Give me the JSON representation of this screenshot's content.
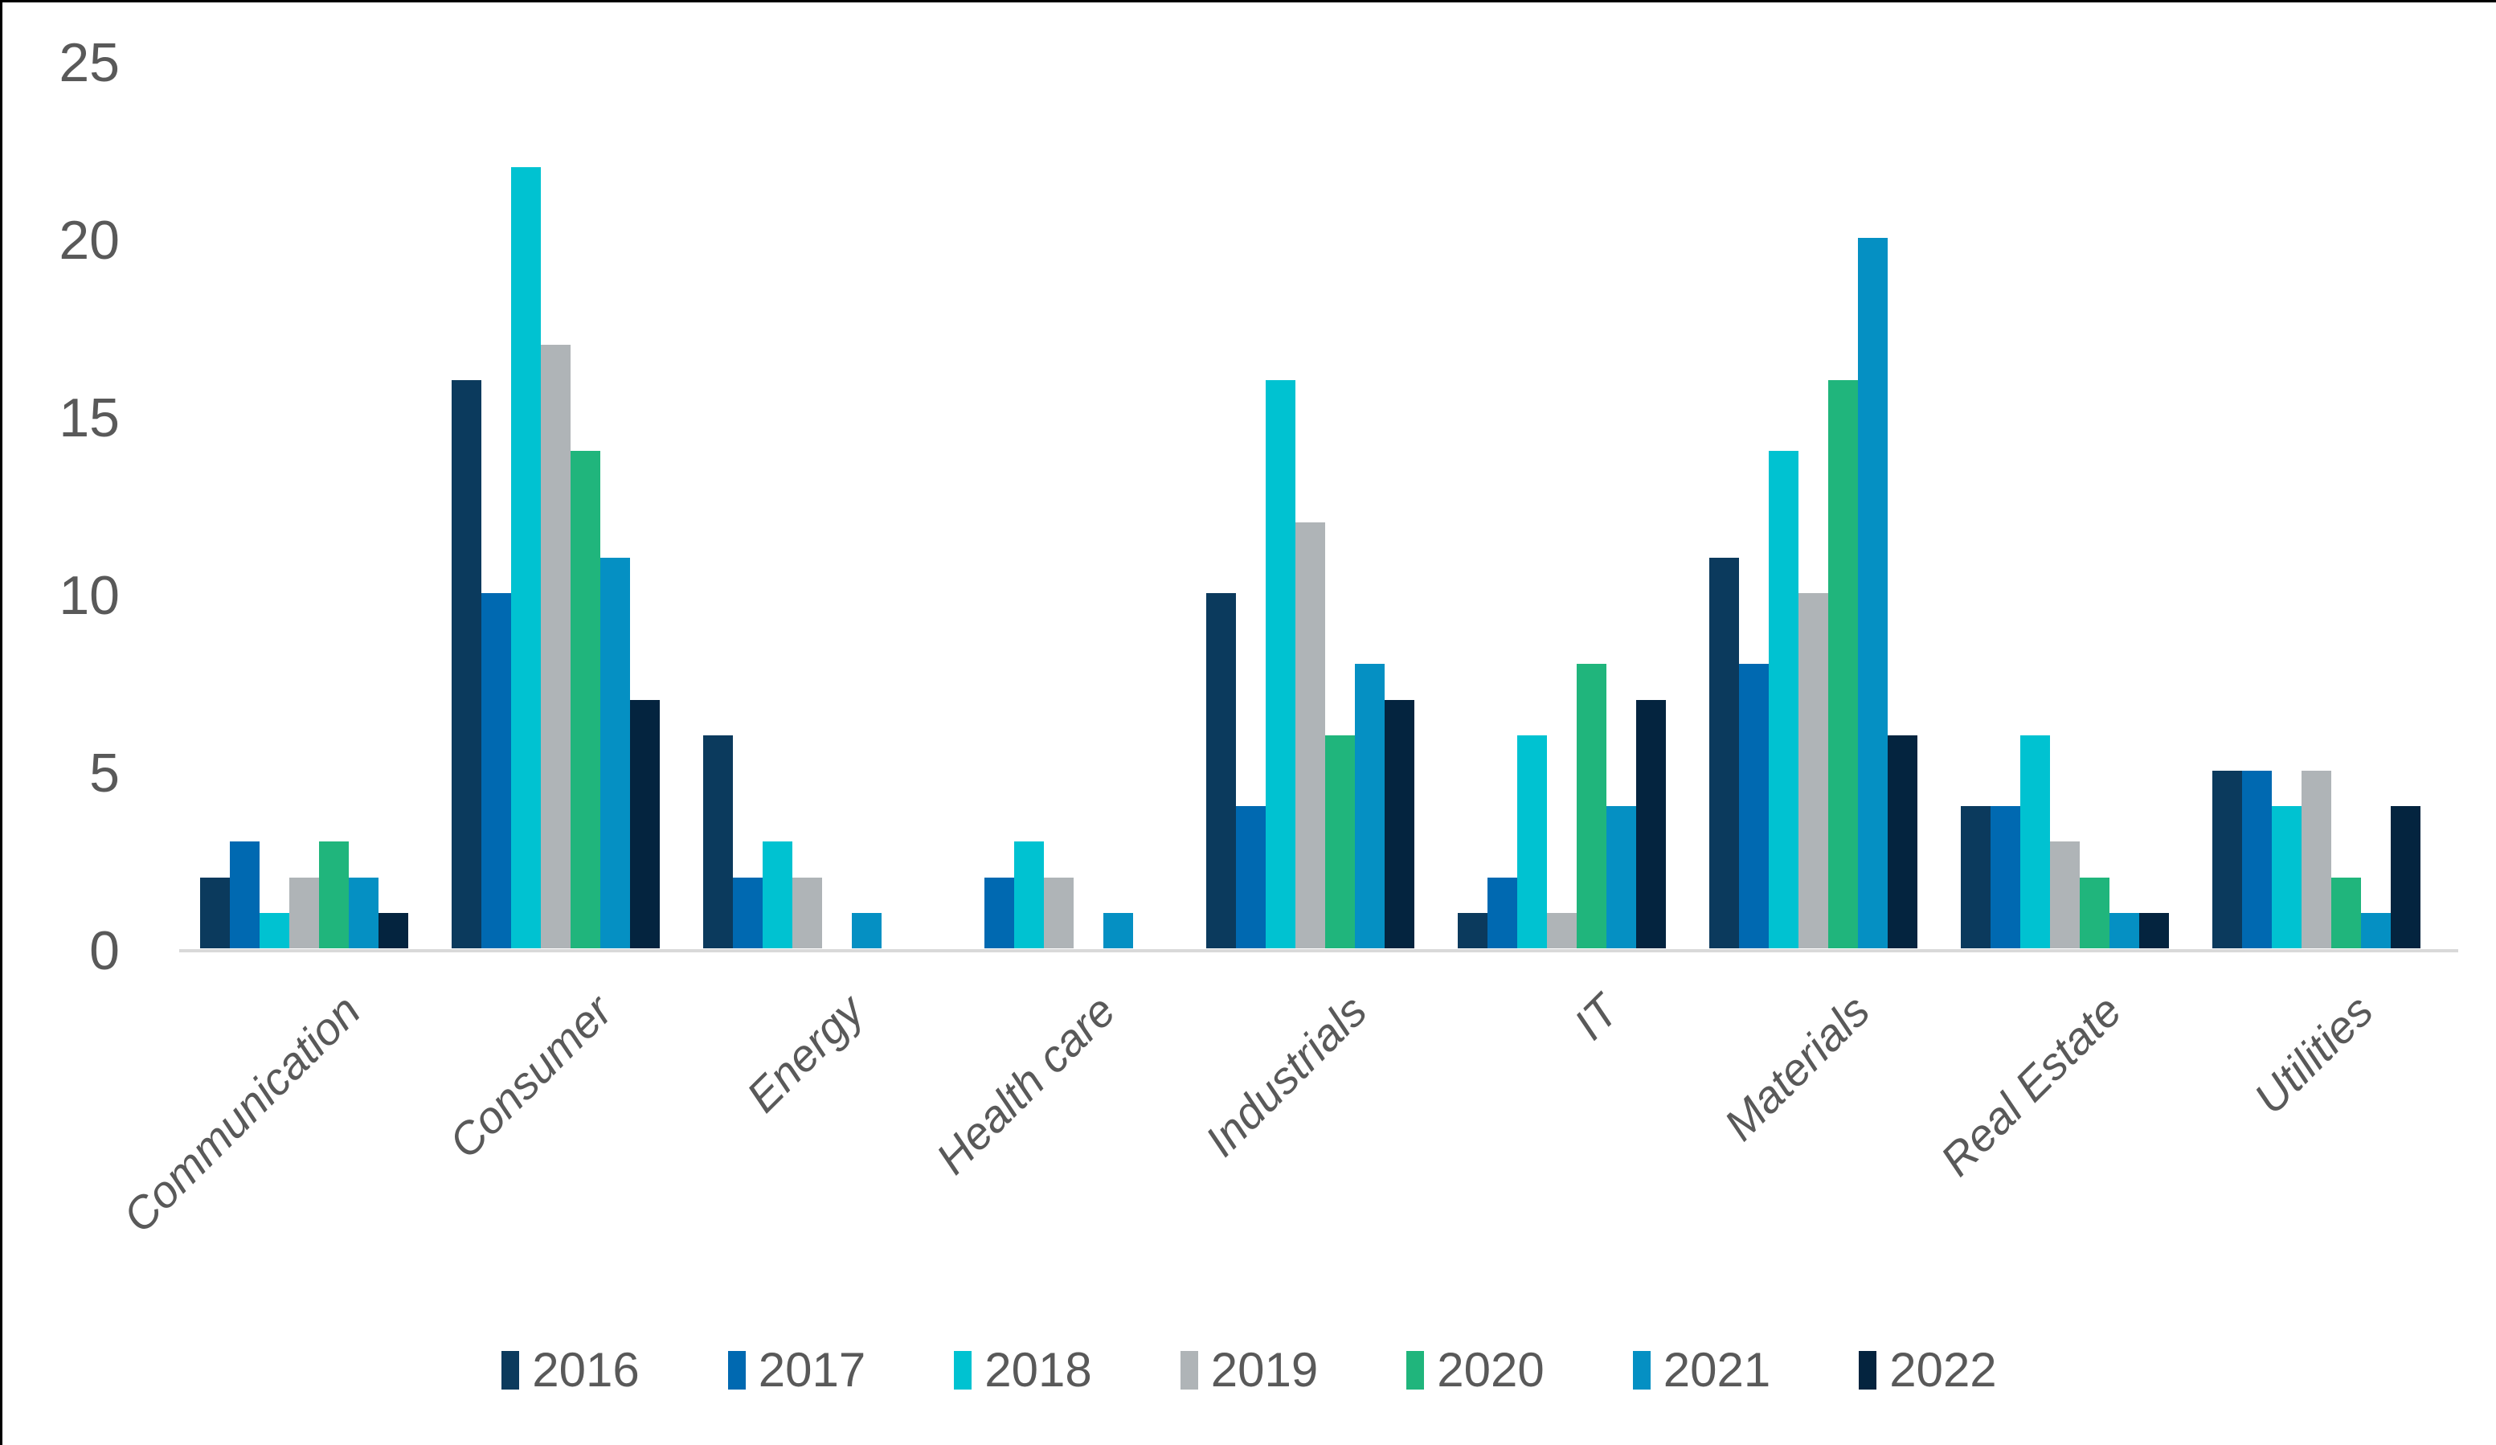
{
  "chart_data": {
    "type": "bar",
    "title": "",
    "xlabel": "",
    "ylabel": "",
    "categories": [
      "Communication",
      "Consumer",
      "Energy",
      "Health care",
      "Industrials",
      "IT",
      "Materials",
      "Real Estate",
      "Utilities"
    ],
    "series": [
      {
        "name": "2016",
        "color": "#0B3A5D",
        "values": [
          2,
          16,
          6,
          0,
          10,
          1,
          11,
          4,
          5
        ]
      },
      {
        "name": "2017",
        "color": "#0069B1",
        "values": [
          3,
          10,
          2,
          2,
          4,
          2,
          8,
          4,
          5
        ]
      },
      {
        "name": "2018",
        "color": "#00C2D1",
        "values": [
          1,
          22,
          3,
          3,
          16,
          6,
          14,
          6,
          4
        ]
      },
      {
        "name": "2019",
        "color": "#AFB4B7",
        "values": [
          2,
          17,
          2,
          2,
          12,
          1,
          10,
          3,
          5
        ]
      },
      {
        "name": "2020",
        "color": "#20B57C",
        "values": [
          3,
          14,
          0,
          0,
          6,
          8,
          16,
          2,
          2
        ]
      },
      {
        "name": "2021",
        "color": "#0590C3",
        "values": [
          2,
          11,
          1,
          1,
          8,
          4,
          20,
          1,
          1
        ]
      },
      {
        "name": "2022",
        "color": "#04243F",
        "values": [
          1,
          7,
          0,
          0,
          7,
          7,
          6,
          1,
          4
        ]
      }
    ],
    "ylim": [
      0,
      25
    ],
    "yticks": [
      0,
      5,
      10,
      15,
      20,
      25
    ],
    "grid": false,
    "legend_position": "bottom",
    "axis_line_color": "#D9D9D9",
    "text_color": "#595959"
  }
}
